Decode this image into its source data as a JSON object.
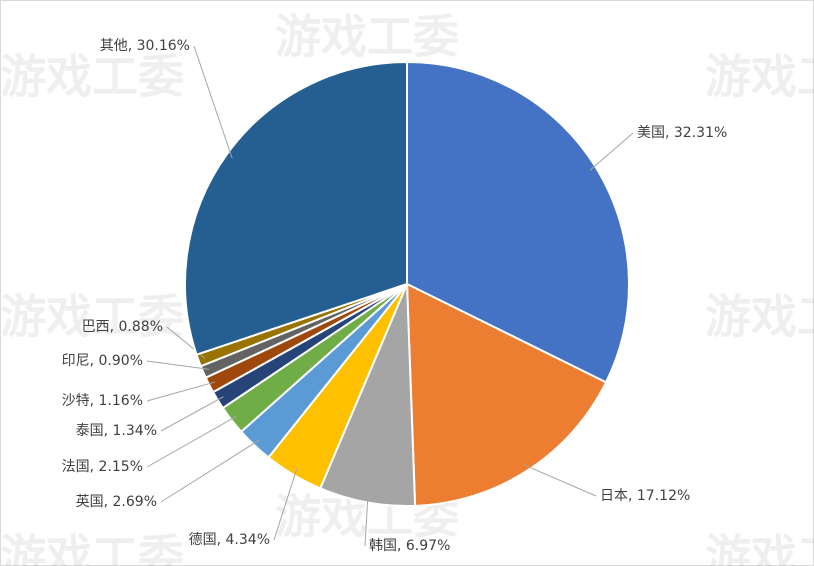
{
  "chart_data": {
    "type": "pie",
    "watermark": "游戏工委",
    "categories": [
      "美国",
      "日本",
      "韩国",
      "德国",
      "英国",
      "法国",
      "泰国",
      "沙特",
      "印尼",
      "巴西",
      "其他"
    ],
    "values": [
      32.31,
      17.12,
      6.97,
      4.34,
      2.69,
      2.15,
      1.34,
      1.16,
      0.9,
      0.88,
      30.16
    ],
    "value_labels": [
      ", 32.31%",
      ", 17.12%",
      ", 6.97%",
      ", 4.34%",
      ", 2.69%",
      ", 2.15%",
      ", 1.34%",
      ", 1.16%",
      ", 0.90%",
      ", 0.88%",
      ", 30.16%"
    ],
    "colors": [
      "#4472c4",
      "#ed7d31",
      "#a5a5a5",
      "#ffc000",
      "#5b9bd5",
      "#70ad47",
      "#264478",
      "#9e480e",
      "#636363",
      "#997300",
      "#255e91"
    ]
  }
}
